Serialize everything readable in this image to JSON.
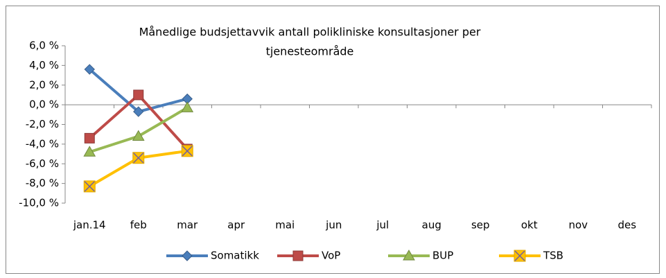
{
  "chart_data": {
    "type": "line",
    "title": [
      "Månedlige budsjettavvik antall polikliniske konsultasjoner per",
      "tjenesteområde"
    ],
    "categories": [
      "jan.14",
      "feb",
      "mar",
      "apr",
      "mai",
      "jun",
      "jul",
      "aug",
      "sep",
      "okt",
      "nov",
      "des"
    ],
    "series": [
      {
        "name": "Somatikk",
        "color": "#4a7ebb",
        "marker": "diamond",
        "values": [
          3.6,
          -0.7,
          0.6,
          null,
          null,
          null,
          null,
          null,
          null,
          null,
          null,
          null
        ]
      },
      {
        "name": "VoP",
        "color": "#be4b48",
        "marker": "square",
        "values": [
          -3.4,
          1.0,
          -4.5,
          null,
          null,
          null,
          null,
          null,
          null,
          null,
          null,
          null
        ]
      },
      {
        "name": "BUP",
        "color": "#98b954",
        "marker": "triangle",
        "values": [
          -4.8,
          -3.2,
          -0.3,
          null,
          null,
          null,
          null,
          null,
          null,
          null,
          null,
          null
        ]
      },
      {
        "name": "TSB",
        "color": "#ffc000",
        "marker": "square-x",
        "values": [
          -8.3,
          -5.4,
          -4.7,
          null,
          null,
          null,
          null,
          null,
          null,
          null,
          null,
          null
        ]
      }
    ],
    "ylim": [
      -10,
      6
    ],
    "yticks": [
      {
        "value": -10,
        "label": "-10,0 %"
      },
      {
        "value": -8,
        "label": "-8,0 %"
      },
      {
        "value": -6,
        "label": "-6,0 %"
      },
      {
        "value": -4,
        "label": "-4,0 %"
      },
      {
        "value": -2,
        "label": "-2,0 %"
      },
      {
        "value": 0,
        "label": "0,0 %"
      },
      {
        "value": 2,
        "label": "2,0 %"
      },
      {
        "value": 4,
        "label": "4,0 %"
      },
      {
        "value": 6,
        "label": "6,0 %"
      }
    ],
    "grid": false,
    "legend": "bottom"
  }
}
